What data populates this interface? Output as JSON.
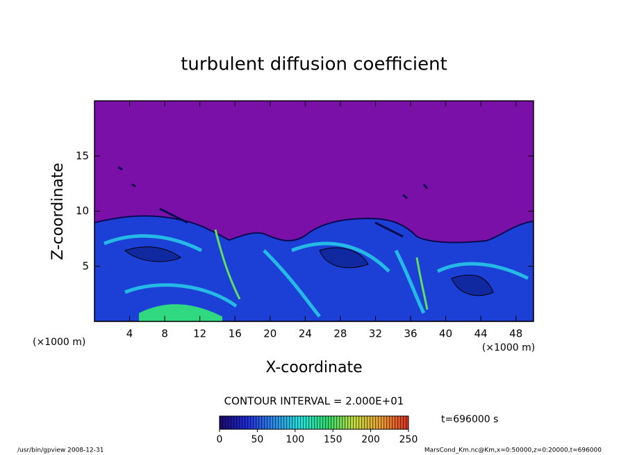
{
  "chart_data": {
    "type": "contour",
    "title": "turbulent diffusion coefficient",
    "xlabel": "X-coordinate",
    "ylabel": "Z-coordinate",
    "x_unit": "(×1000 m)",
    "xlim": [
      0,
      50
    ],
    "xticks": [
      4,
      8,
      12,
      16,
      20,
      24,
      28,
      32,
      36,
      40,
      44,
      48
    ],
    "ylim": [
      0,
      20
    ],
    "yticks": [
      5,
      10,
      15
    ],
    "contour_interval": "CONTOUR INTERVAL = 2.000E+01",
    "clim": [
      0,
      250
    ],
    "cticks": [
      0,
      50,
      100,
      150,
      200,
      250
    ],
    "colormap": [
      "#1a0a6e",
      "#1e2ad8",
      "#2f8cf0",
      "#20e8e0",
      "#30e070",
      "#c8e040",
      "#f0a030",
      "#e03020"
    ],
    "time": "t=696000 s",
    "footer_left": "/usr/bin/gpview   2008-12-31",
    "footer_right": "MarsCond_Km.nc@Km,x=0:50000,z=0:20000,t=696000"
  }
}
